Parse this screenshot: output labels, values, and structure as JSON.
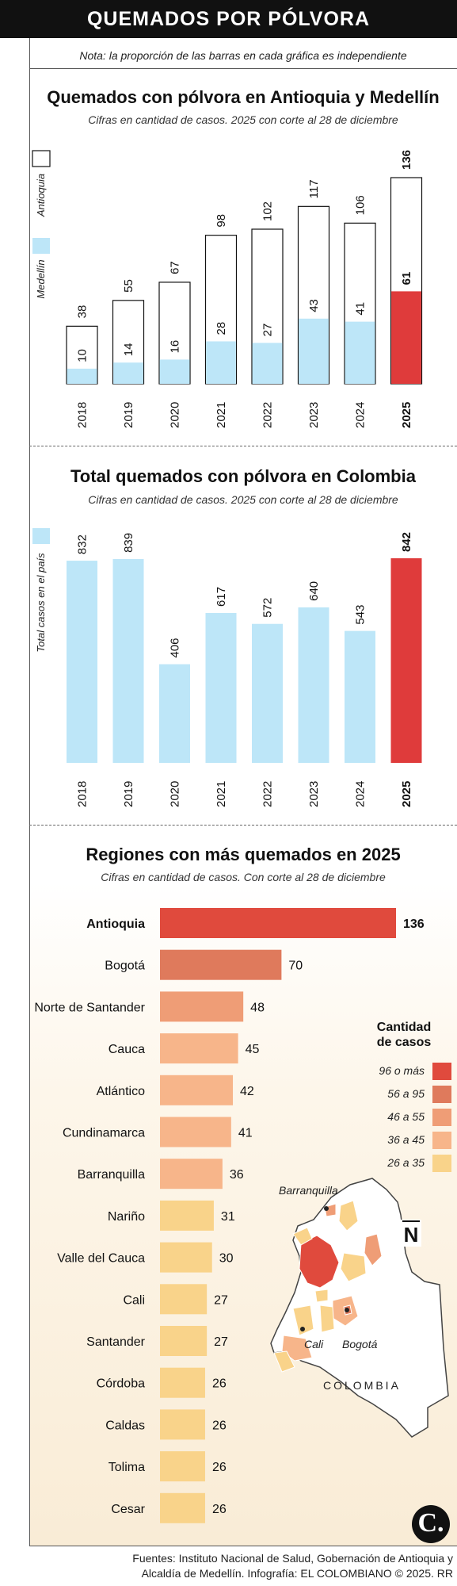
{
  "header": {
    "title": "QUEMADOS POR PÓLVORA"
  },
  "note": "Nota: la proporción de las barras en cada gráfica es independiente",
  "sources": {
    "line1": "Fuentes: Instituto Nacional de Salud, Gobernación de Antioquia y",
    "line2": "Alcaldía de Medellín. Infografía: EL COLOMBIANO © 2025. RR"
  },
  "logo": {
    "text": "C."
  },
  "colors": {
    "light_blue": "#bde6f8",
    "red": "#df3b3b",
    "c96": "#e04a3d",
    "c56": "#df7a5c",
    "c46": "#ef9d76",
    "c36": "#f7b58a",
    "c26": "#f9d38a"
  },
  "chart_data": [
    {
      "type": "bar",
      "title": "Quemados con pólvora en Antioquia y Medellín",
      "subtitle": "Cifras en cantidad de casos. 2025 con corte al 28 de diciembre",
      "categories": [
        "2018",
        "2019",
        "2020",
        "2021",
        "2022",
        "2023",
        "2024",
        "2025"
      ],
      "series": [
        {
          "name": "Antioquia",
          "values": [
            38,
            55,
            67,
            98,
            102,
            117,
            106,
            136
          ]
        },
        {
          "name": "Medellín",
          "values": [
            10,
            14,
            16,
            28,
            27,
            43,
            41,
            61
          ]
        }
      ],
      "highlight": "2025",
      "ylim": [
        0,
        136
      ]
    },
    {
      "type": "bar",
      "title": "Total quemados con pólvora en Colombia",
      "subtitle": "Cifras en cantidad de casos. 2025 con corte al 28 de diciembre",
      "categories": [
        "2018",
        "2019",
        "2020",
        "2021",
        "2022",
        "2023",
        "2024",
        "2025"
      ],
      "series": [
        {
          "name": "Total casos en el país",
          "values": [
            832,
            839,
            406,
            617,
            572,
            640,
            543,
            842
          ]
        }
      ],
      "highlight": "2025",
      "ylim": [
        0,
        842
      ]
    },
    {
      "type": "bar",
      "orientation": "horizontal",
      "title": "Regiones con más quemados en 2025",
      "subtitle": "Cifras en cantidad de casos. Con corte al 28 de diciembre",
      "categories": [
        "Antioquia",
        "Bogotá",
        "Norte de Santander",
        "Cauca",
        "Atlántico",
        "Cundinamarca",
        "Barranquilla",
        "Nariño",
        "Valle del Cauca",
        "Cali",
        "Santander",
        "Córdoba",
        "Caldas",
        "Tolima",
        "Cesar"
      ],
      "values": [
        136,
        70,
        48,
        45,
        42,
        41,
        36,
        31,
        30,
        27,
        27,
        26,
        26,
        26,
        26
      ],
      "xlim": [
        0,
        136
      ],
      "legend": {
        "title_line1": "Cantidad",
        "title_line2": "de casos",
        "ranges": [
          "96 o más",
          "56 a 95",
          "46 a 55",
          "36 a 45",
          "26 a 35"
        ]
      },
      "map": {
        "country_label": "COLOMBIA",
        "city_labels": [
          "Barranquilla",
          "Cali",
          "Bogotá"
        ],
        "north_symbol": "N"
      }
    }
  ]
}
